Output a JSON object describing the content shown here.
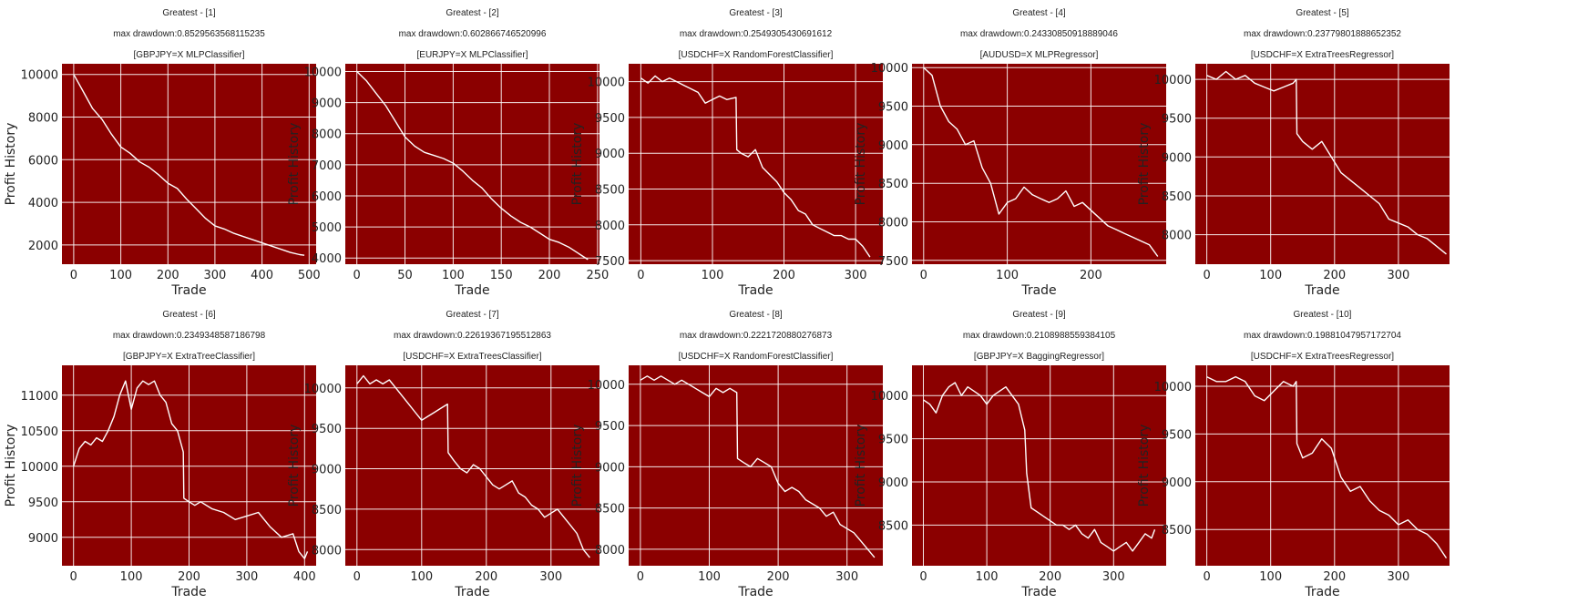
{
  "style": {
    "plot_bg": "#8b0000",
    "grid_color": "#ffffff",
    "line_color": "#ffffff",
    "text_color": "#222222"
  },
  "chart_data": [
    {
      "type": "line",
      "title": "Greatest - [1]",
      "subtitle": "max drawdown:0.8529563568115235",
      "label": "[GBPJPY=X MLPClassifier]",
      "xlabel": "Trade",
      "ylabel": "Profit History",
      "xlim": [
        -25,
        515
      ],
      "ylim": [
        1100,
        10500
      ],
      "xticks": [
        0,
        100,
        200,
        300,
        400,
        500
      ],
      "yticks": [
        2000,
        4000,
        6000,
        8000,
        10000
      ],
      "grid": true,
      "x": [
        0,
        20,
        40,
        60,
        80,
        100,
        120,
        140,
        160,
        180,
        200,
        220,
        240,
        260,
        280,
        300,
        320,
        340,
        360,
        380,
        400,
        420,
        440,
        460,
        480,
        490
      ],
      "y": [
        10000,
        9200,
        8400,
        7900,
        7200,
        6600,
        6300,
        5900,
        5650,
        5300,
        4900,
        4650,
        4150,
        3700,
        3250,
        2900,
        2750,
        2550,
        2400,
        2250,
        2100,
        1950,
        1800,
        1650,
        1550,
        1520
      ]
    },
    {
      "type": "line",
      "title": "Greatest - [2]",
      "subtitle": "max drawdown:0.602866746520996",
      "label": "[EURJPY=X MLPClassifier]",
      "xlabel": "Trade",
      "ylabel": "Profit History",
      "xlim": [
        -12,
        252
      ],
      "ylim": [
        3800,
        10250
      ],
      "xticks": [
        0,
        50,
        100,
        150,
        200,
        250
      ],
      "yticks": [
        4000,
        5000,
        6000,
        7000,
        8000,
        9000,
        10000
      ],
      "grid": true,
      "x": [
        0,
        10,
        20,
        30,
        40,
        50,
        60,
        70,
        80,
        90,
        100,
        110,
        120,
        130,
        140,
        150,
        160,
        170,
        180,
        190,
        200,
        210,
        220,
        230,
        240
      ],
      "y": [
        10000,
        9700,
        9300,
        8900,
        8400,
        7900,
        7600,
        7400,
        7300,
        7200,
        7050,
        6800,
        6500,
        6250,
        5900,
        5600,
        5350,
        5150,
        5000,
        4800,
        4600,
        4500,
        4350,
        4150,
        3950
      ]
    },
    {
      "type": "line",
      "title": "Greatest - [3]",
      "subtitle": "max drawdown:0.2549305430691612",
      "label": "[USDCHF=X RandomForestClassifier]",
      "xlabel": "Trade",
      "ylabel": "Profit History",
      "xlim": [
        -17,
        338
      ],
      "ylim": [
        7450,
        10250
      ],
      "xticks": [
        0,
        100,
        200,
        300
      ],
      "yticks": [
        7500,
        8000,
        8500,
        9000,
        9500,
        10000
      ],
      "grid": true,
      "x": [
        0,
        10,
        20,
        30,
        40,
        50,
        60,
        70,
        80,
        90,
        100,
        110,
        120,
        133,
        134,
        140,
        150,
        160,
        170,
        180,
        190,
        200,
        210,
        220,
        230,
        240,
        250,
        260,
        270,
        280,
        290,
        300,
        310,
        320
      ],
      "y": [
        10050,
        9980,
        10080,
        10000,
        10050,
        10000,
        9950,
        9900,
        9850,
        9700,
        9750,
        9800,
        9750,
        9780,
        9050,
        9000,
        8950,
        9050,
        8800,
        8700,
        8600,
        8450,
        8350,
        8200,
        8150,
        8000,
        7950,
        7900,
        7850,
        7850,
        7800,
        7800,
        7700,
        7550
      ]
    },
    {
      "type": "line",
      "title": "Greatest - [4]",
      "subtitle": "max drawdown:0.24330850918889046",
      "label": "[AUDUSD=X MLPRegressor]",
      "xlabel": "Trade",
      "ylabel": "Profit History",
      "xlim": [
        -14,
        290
      ],
      "ylim": [
        7450,
        10050
      ],
      "xticks": [
        0,
        100,
        200
      ],
      "yticks": [
        7500,
        8000,
        8500,
        9000,
        9500,
        10000
      ],
      "grid": true,
      "x": [
        0,
        10,
        20,
        30,
        40,
        50,
        60,
        70,
        80,
        90,
        100,
        110,
        120,
        130,
        140,
        150,
        160,
        170,
        180,
        190,
        200,
        210,
        220,
        230,
        240,
        250,
        260,
        270,
        280
      ],
      "y": [
        10000,
        9900,
        9500,
        9300,
        9200,
        9000,
        9050,
        8700,
        8500,
        8100,
        8250,
        8300,
        8450,
        8350,
        8300,
        8250,
        8300,
        8400,
        8200,
        8250,
        8150,
        8050,
        7950,
        7900,
        7850,
        7800,
        7750,
        7700,
        7550
      ]
    },
    {
      "type": "line",
      "title": "Greatest - [5]",
      "subtitle": "max drawdown:0.23779801888652352",
      "label": "[USDCHF=X ExtraTreesRegressor]",
      "xlabel": "Trade",
      "ylabel": "Profit History",
      "xlim": [
        -18,
        380
      ],
      "ylim": [
        7620,
        10200
      ],
      "xticks": [
        0,
        100,
        200,
        300
      ],
      "yticks": [
        8000,
        8500,
        9000,
        9500,
        10000
      ],
      "grid": true,
      "x": [
        0,
        15,
        30,
        45,
        60,
        75,
        90,
        105,
        120,
        135,
        140,
        141,
        150,
        165,
        180,
        195,
        210,
        225,
        240,
        255,
        270,
        285,
        300,
        315,
        330,
        345,
        360,
        375
      ],
      "y": [
        10050,
        10000,
        10100,
        10000,
        10050,
        9950,
        9900,
        9850,
        9900,
        9950,
        10000,
        9300,
        9200,
        9100,
        9200,
        9000,
        8800,
        8700,
        8600,
        8500,
        8400,
        8200,
        8150,
        8100,
        8000,
        7950,
        7850,
        7750
      ]
    },
    {
      "type": "line",
      "title": "Greatest - [6]",
      "subtitle": "max drawdown:0.2349348587186798",
      "label": "[GBPJPY=X ExtraTreeClassifier]",
      "xlabel": "Trade",
      "ylabel": "Profit History",
      "xlim": [
        -20,
        420
      ],
      "ylim": [
        8600,
        11420
      ],
      "xticks": [
        0,
        100,
        200,
        300,
        400
      ],
      "yticks": [
        9000,
        9500,
        10000,
        10500,
        11000
      ],
      "grid": true,
      "x": [
        0,
        10,
        20,
        30,
        40,
        50,
        60,
        70,
        80,
        90,
        100,
        110,
        120,
        130,
        140,
        150,
        160,
        170,
        180,
        190,
        191,
        200,
        210,
        220,
        240,
        260,
        280,
        300,
        320,
        340,
        360,
        380,
        390,
        400,
        405
      ],
      "y": [
        10000,
        10250,
        10350,
        10300,
        10400,
        10350,
        10500,
        10700,
        11000,
        11200,
        10800,
        11100,
        11200,
        11150,
        11200,
        11000,
        10900,
        10600,
        10500,
        10200,
        9550,
        9500,
        9450,
        9500,
        9400,
        9350,
        9250,
        9300,
        9350,
        9150,
        9000,
        9050,
        8800,
        8700,
        8800
      ]
    },
    {
      "type": "line",
      "title": "Greatest - [7]",
      "subtitle": "max drawdown:0.22619367195512863",
      "label": "[USDCHF=X ExtraTreesClassifier]",
      "xlabel": "Trade",
      "ylabel": "Profit History",
      "xlim": [
        -18,
        375
      ],
      "ylim": [
        7800,
        10280
      ],
      "xticks": [
        0,
        100,
        200,
        300
      ],
      "yticks": [
        8000,
        8500,
        9000,
        9500,
        10000
      ],
      "grid": true,
      "x": [
        0,
        10,
        20,
        30,
        40,
        50,
        60,
        70,
        80,
        90,
        100,
        110,
        120,
        130,
        140,
        141,
        150,
        160,
        170,
        180,
        190,
        200,
        210,
        220,
        230,
        240,
        250,
        260,
        270,
        280,
        290,
        300,
        310,
        320,
        330,
        340,
        350,
        360
      ],
      "y": [
        10050,
        10150,
        10050,
        10100,
        10050,
        10100,
        10000,
        9900,
        9800,
        9700,
        9600,
        9650,
        9700,
        9750,
        9800,
        9200,
        9100,
        9000,
        8950,
        9050,
        9000,
        8900,
        8800,
        8750,
        8800,
        8850,
        8700,
        8650,
        8550,
        8500,
        8400,
        8450,
        8500,
        8400,
        8300,
        8200,
        8000,
        7900
      ]
    },
    {
      "type": "line",
      "title": "Greatest - [8]",
      "subtitle": "max drawdown:0.2221720880276873",
      "label": "[USDCHF=X RandomForestClassifier]",
      "xlabel": "Trade",
      "ylabel": "Profit History",
      "xlim": [
        -17,
        352
      ],
      "ylim": [
        7800,
        10230
      ],
      "xticks": [
        0,
        100,
        200,
        300
      ],
      "yticks": [
        8000,
        8500,
        9000,
        9500,
        10000
      ],
      "grid": true,
      "x": [
        0,
        10,
        20,
        30,
        40,
        50,
        60,
        70,
        80,
        90,
        100,
        110,
        120,
        130,
        140,
        141,
        150,
        160,
        170,
        180,
        190,
        200,
        210,
        220,
        230,
        240,
        250,
        260,
        270,
        280,
        290,
        300,
        310,
        320,
        330,
        340
      ],
      "y": [
        10050,
        10100,
        10050,
        10100,
        10050,
        10000,
        10050,
        10000,
        9950,
        9900,
        9850,
        9950,
        9900,
        9950,
        9900,
        9100,
        9050,
        9000,
        9100,
        9050,
        9000,
        8800,
        8700,
        8750,
        8700,
        8600,
        8550,
        8500,
        8400,
        8450,
        8300,
        8250,
        8200,
        8100,
        8000,
        7900
      ]
    },
    {
      "type": "line",
      "title": "Greatest - [9]",
      "subtitle": "max drawdown:0.2108988559384105",
      "label": "[GBPJPY=X BaggingRegressor]",
      "xlabel": "Trade",
      "ylabel": "Profit History",
      "xlim": [
        -18,
        383
      ],
      "ylim": [
        8030,
        10350
      ],
      "xticks": [
        0,
        100,
        200,
        300
      ],
      "yticks": [
        8500,
        9000,
        9500,
        10000
      ],
      "grid": true,
      "x": [
        0,
        10,
        20,
        30,
        40,
        50,
        60,
        70,
        80,
        90,
        100,
        110,
        120,
        130,
        140,
        150,
        160,
        163,
        170,
        180,
        190,
        200,
        210,
        220,
        230,
        240,
        250,
        260,
        270,
        280,
        290,
        300,
        310,
        320,
        330,
        340,
        350,
        360,
        365
      ],
      "y": [
        9950,
        9900,
        9800,
        10000,
        10100,
        10150,
        10000,
        10100,
        10050,
        10000,
        9900,
        10000,
        10050,
        10100,
        10000,
        9900,
        9600,
        9100,
        8700,
        8650,
        8600,
        8550,
        8500,
        8500,
        8450,
        8500,
        8400,
        8350,
        8450,
        8300,
        8250,
        8200,
        8250,
        8300,
        8200,
        8300,
        8400,
        8350,
        8450
      ]
    },
    {
      "type": "line",
      "title": "Greatest - [10]",
      "subtitle": "max drawdown:0.19881047957172704",
      "label": "[USDCHF=X ExtraTreesRegressor]",
      "xlabel": "Trade",
      "ylabel": "Profit History",
      "xlim": [
        -18,
        380
      ],
      "ylim": [
        8120,
        10220
      ],
      "xticks": [
        0,
        100,
        200,
        300
      ],
      "yticks": [
        8500,
        9000,
        9500,
        10000
      ],
      "grid": true,
      "x": [
        0,
        15,
        30,
        45,
        60,
        75,
        90,
        105,
        120,
        135,
        140,
        141,
        150,
        165,
        180,
        195,
        210,
        225,
        240,
        255,
        270,
        285,
        300,
        315,
        330,
        345,
        360,
        375
      ],
      "y": [
        10100,
        10050,
        10050,
        10100,
        10050,
        9900,
        9850,
        9950,
        10050,
        10000,
        10050,
        9400,
        9250,
        9300,
        9450,
        9350,
        9050,
        8900,
        8950,
        8800,
        8700,
        8650,
        8550,
        8600,
        8500,
        8450,
        8350,
        8200
      ]
    }
  ]
}
